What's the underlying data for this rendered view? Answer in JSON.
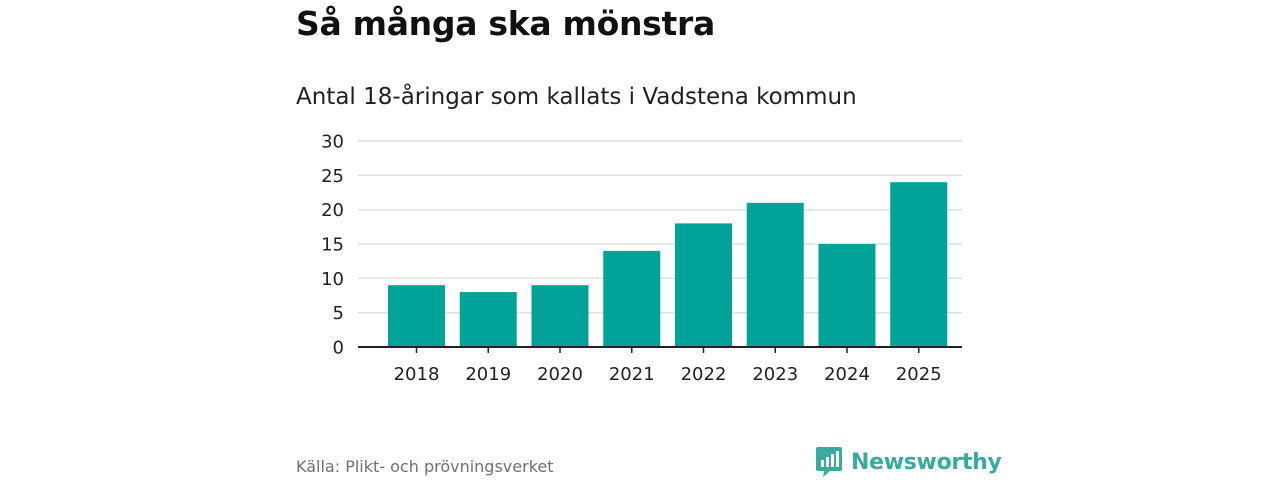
{
  "header": {
    "title": "Så många ska mönstra",
    "subtitle": "Antal 18-åringar som kallats i Vadstena kommun"
  },
  "footer": {
    "source": "Källa: Plikt- och prövningsverket",
    "brand": "Newsworthy"
  },
  "colors": {
    "bar": "#00a397",
    "grid": "#dddddd",
    "axis": "#222222",
    "brand": "#3aa9a0"
  },
  "chart_data": {
    "type": "bar",
    "title": "Så många ska mönstra",
    "subtitle": "Antal 18-åringar som kallats i Vadstena kommun",
    "xlabel": "",
    "ylabel": "",
    "categories": [
      "2018",
      "2019",
      "2020",
      "2021",
      "2022",
      "2023",
      "2024",
      "2025"
    ],
    "values": [
      9,
      8,
      9,
      14,
      18,
      21,
      15,
      24
    ],
    "ylim": [
      0,
      30
    ],
    "yticks": [
      0,
      5,
      10,
      15,
      20,
      25,
      30
    ],
    "grid": true,
    "legend": "none"
  }
}
